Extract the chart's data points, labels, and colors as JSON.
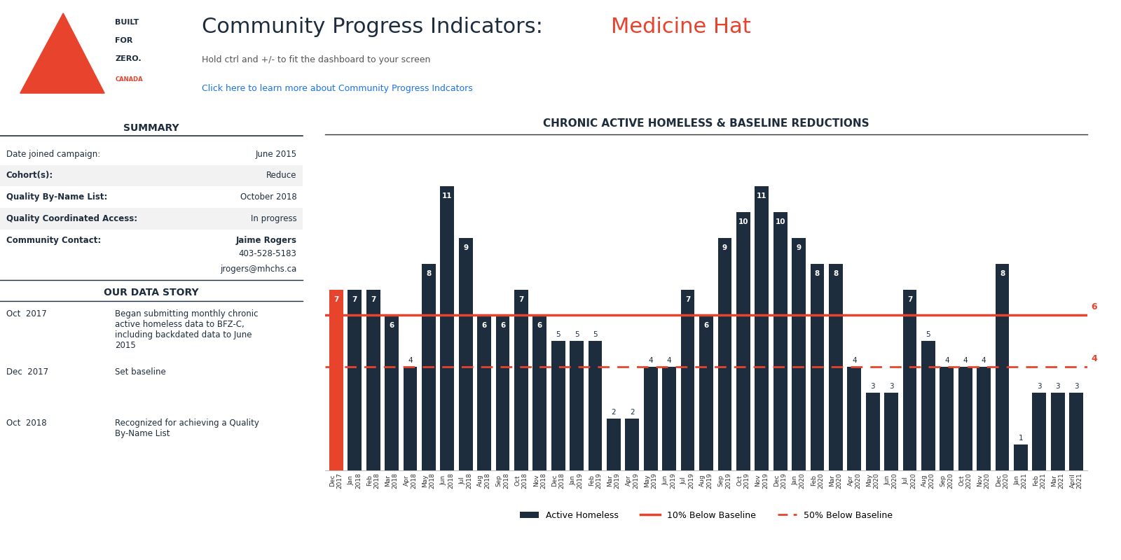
{
  "title_main": "Community Progress Indicators:",
  "title_city": "Medicine Hat",
  "subtitle1": "Hold ctrl and +/- to fit the dashboard to your screen",
  "subtitle2": "Click here to learn more about Community Progress Indcators",
  "chart_title": "CHRONIC ACTIVE HOMELESS & BASELINE REDUCTIONS",
  "summary_title": "SUMMARY",
  "summary_rows": [
    [
      "Date joined campaign:",
      "June 2015"
    ],
    [
      "Cohort(s):",
      "Reduce"
    ],
    [
      "Quality By-Name List:",
      "October 2018"
    ],
    [
      "Quality Coordinated Access:",
      "In progress"
    ],
    [
      "Community Contact:",
      "Jaime Rogers"
    ]
  ],
  "summary_extra": [
    "403-528-5183",
    "jrogers@mhchs.ca"
  ],
  "data_story_title": "OUR DATA STORY",
  "data_story": [
    [
      "Oct  2017",
      "Began submitting monthly chronic\nactive homeless data to BFZ-C,\nincluding backdated data to June\n2015"
    ],
    [
      "Dec  2017",
      "Set baseline"
    ],
    [
      "Oct  2018",
      "Recognized for achieving a Quality\nBy-Name List"
    ]
  ],
  "months": [
    "Dec\n2017",
    "Jan\n2018",
    "Feb\n2018",
    "Mar\n2018",
    "Apr\n2018",
    "May\n2018",
    "Jun\n2018",
    "Jul\n2018",
    "Aug\n2018",
    "Sep\n2018",
    "Oct\n2018",
    "Nov\n2018",
    "Dec\n2018",
    "Jan\n2019",
    "Feb\n2019",
    "Mar\n2019",
    "Apr\n2019",
    "May\n2019",
    "Jun\n2019",
    "Jul\n2019",
    "Aug\n2019",
    "Sep\n2019",
    "Oct\n2019",
    "Nov\n2019",
    "Dec\n2019",
    "Jan\n2020",
    "Feb\n2020",
    "Mar\n2020",
    "Apr\n2020",
    "May\n2020",
    "Jun\n2020",
    "Jul\n2020",
    "Aug\n2020",
    "Sep\n2020",
    "Oct\n2020",
    "Nov\n2020",
    "Dec\n2020",
    "Jan\n2021",
    "Feb\n2021",
    "Mar\n2021",
    "April\n2021"
  ],
  "values": [
    7,
    7,
    7,
    6,
    4,
    8,
    11,
    9,
    6,
    6,
    7,
    6,
    5,
    5,
    5,
    2,
    2,
    4,
    4,
    7,
    6,
    9,
    10,
    11,
    10,
    9,
    8,
    8,
    4,
    3,
    3,
    7,
    5,
    4,
    4,
    4,
    8,
    1,
    3,
    3,
    3
  ],
  "bar_color_first": "#e8432d",
  "bar_color_main": "#1e2d3d",
  "line_10pct_color": "#e8432d",
  "line_50pct_color": "#e8432d",
  "line_10pct_value": 6,
  "line_50pct_value": 4,
  "line_10pct_label": "6",
  "line_50pct_label": "4",
  "legend_labels": [
    "Active Homeless",
    "10% Below Baseline",
    "50% Below Baseline"
  ],
  "background_color": "#ffffff",
  "panel_line_color": "#1e2d3d",
  "alt_row_color": "#f2f2f2",
  "ylim": [
    0,
    13
  ]
}
